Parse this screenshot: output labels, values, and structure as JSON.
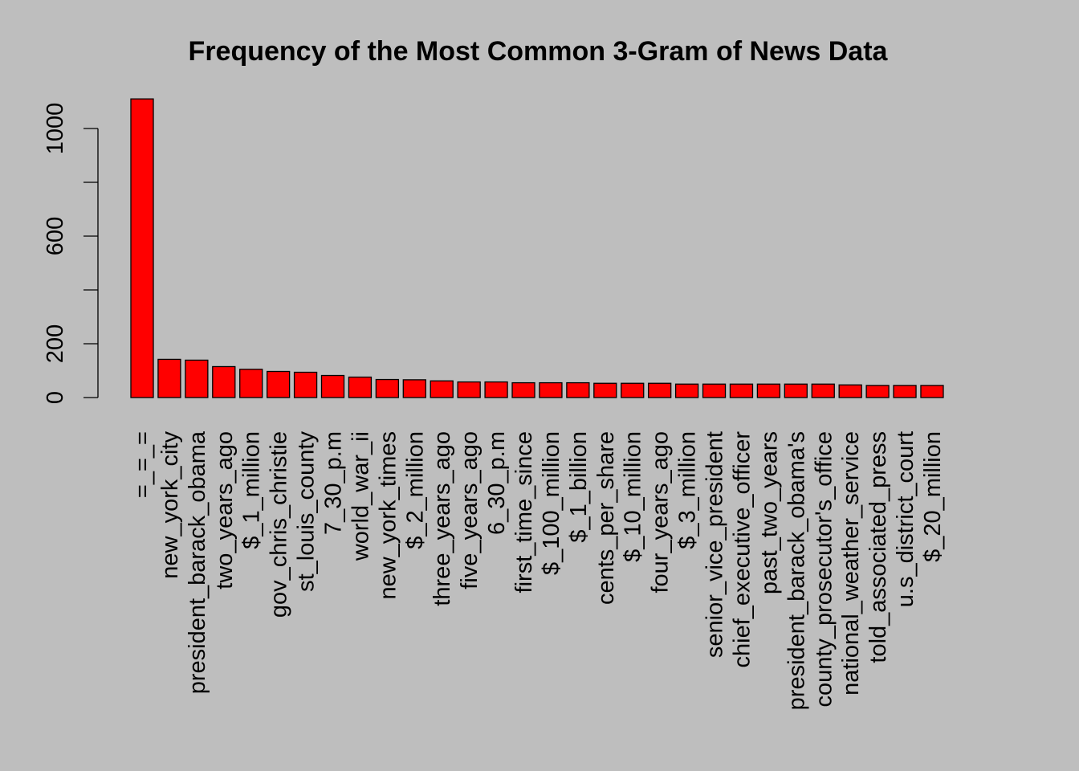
{
  "chart_data": {
    "type": "bar",
    "title": "Frequency of the Most Common 3-Gram of News Data",
    "xlabel": "",
    "ylabel": "",
    "ylim": [
      0,
      1100
    ],
    "yticks": [
      0,
      200,
      600,
      1000
    ],
    "grid": false,
    "legend": "none",
    "bar_color": "#ff0000",
    "background_color": "#bebebe",
    "categories": [
      "=_=_=",
      "new_york_city",
      "president_barack_obama",
      "two_years_ago",
      "$_1_million",
      "gov_chris_christie",
      "st_louis_county",
      "7_30_p.m",
      "world_war_ii",
      "new_york_times",
      "$_2_million",
      "three_years_ago",
      "five_years_ago",
      "6_30_p.m",
      "first_time_since",
      "$_100_million",
      "$_1_billion",
      "cents_per_share",
      "$_10_million",
      "four_years_ago",
      "$_3_million",
      "senior_vice_president",
      "chief_executive_officer",
      "past_two_years",
      "president_barack_obama's",
      "county_prosecutor's_office",
      "national_weather_service",
      "told_associated_press",
      "u.s_district_court",
      "$_20_million"
    ],
    "values": [
      1110,
      142,
      139,
      115,
      105,
      97,
      94,
      82,
      76,
      67,
      66,
      62,
      58,
      58,
      55,
      55,
      55,
      53,
      53,
      53,
      50,
      50,
      50,
      50,
      50,
      50,
      47,
      45,
      45,
      45
    ]
  }
}
